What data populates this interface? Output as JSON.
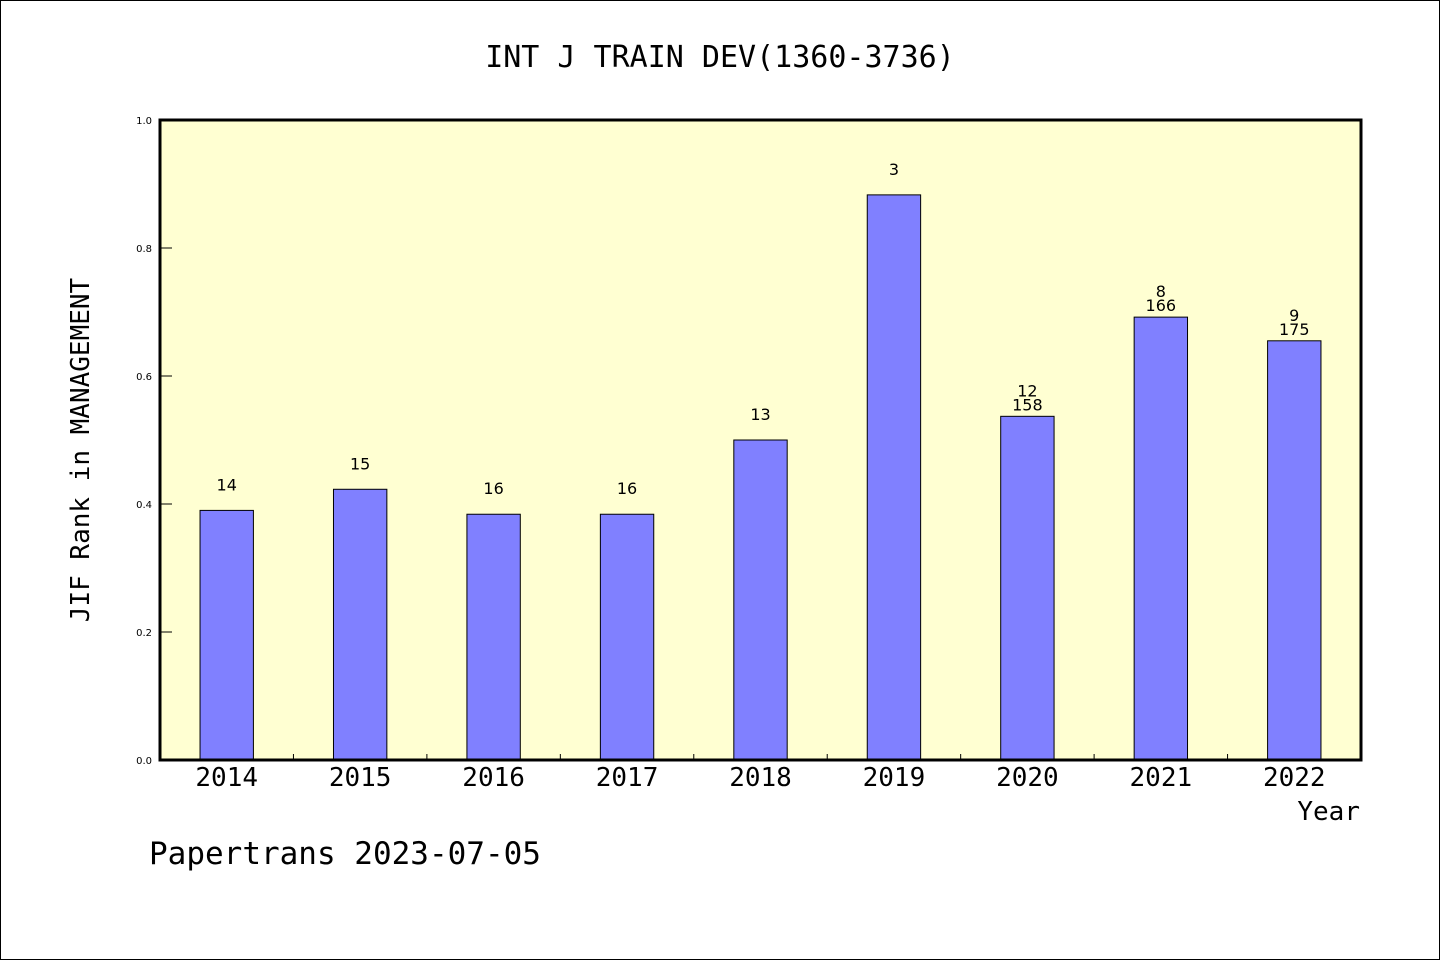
{
  "chart_data": {
    "type": "bar",
    "title": "INT J TRAIN DEV(1360-3736)",
    "xlabel": "Year",
    "ylabel": "JIF Rank in MANAGEMENT",
    "ylim": [
      0.0,
      1.0
    ],
    "yticks": [
      "0.0",
      "0.2",
      "0.4",
      "0.6",
      "0.8",
      "1.0"
    ],
    "grid": false,
    "categories": [
      "2014",
      "2015",
      "2016",
      "2017",
      "2018",
      "2019",
      "2020",
      "2021",
      "2022"
    ],
    "values": [
      0.39,
      0.423,
      0.384,
      0.384,
      0.5,
      0.883,
      0.537,
      0.692,
      0.655
    ],
    "bar_labels": [
      [
        "14"
      ],
      [
        "15"
      ],
      [
        "16"
      ],
      [
        "16"
      ],
      [
        "13"
      ],
      [
        "3"
      ],
      [
        "12",
        "158"
      ],
      [
        "8",
        "166"
      ],
      [
        "9",
        "175"
      ]
    ],
    "colors": {
      "plot_bg": "#ffffd2",
      "bar": "#8080ff",
      "axis": "#000000"
    }
  },
  "footer": {
    "text": "Papertrans 2023-07-05"
  }
}
